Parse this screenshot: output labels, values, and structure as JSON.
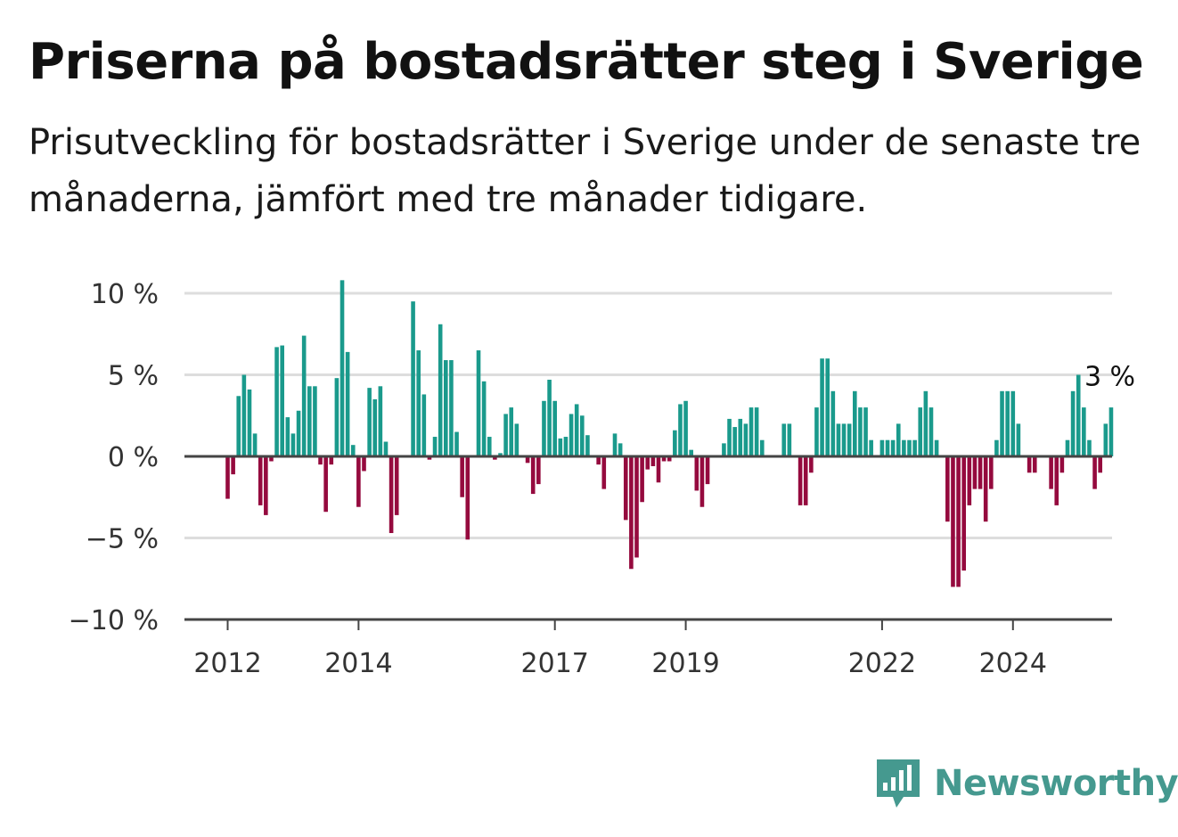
{
  "title": "Priserna på bostadsrätter steg i Sverige",
  "subtitle": "Prisutveckling för bostadsrätter i Sverige under de senaste tre månaderna, jämfört med tre månader tidigare.",
  "brand": {
    "name": "Newsworthy",
    "logo_icon": "bar-chart-speech-bubble-icon"
  },
  "colors": {
    "positive": "#1a9a8c",
    "negative": "#950a3e",
    "grid": "#dddddd",
    "axis": "#444444",
    "brand": "#45998f"
  },
  "chart_data": {
    "type": "bar",
    "title": "Priserna på bostadsrätter steg i Sverige",
    "xlabel": "",
    "ylabel": "",
    "ylim": [
      -10,
      11
    ],
    "yticks": [
      10,
      5,
      0,
      -5,
      -10
    ],
    "ytick_labels": [
      "10 %",
      "5 %",
      "0 %",
      "−5 %",
      "−10 %"
    ],
    "xticks": [
      {
        "label": "2012",
        "index": 0
      },
      {
        "label": "2014",
        "index": 24
      },
      {
        "label": "2017",
        "index": 60
      },
      {
        "label": "2019",
        "index": 84
      },
      {
        "label": "2022",
        "index": 120
      },
      {
        "label": "2024",
        "index": 144
      }
    ],
    "grid": true,
    "last_value_label": "3 %",
    "series": [
      {
        "values": [
          -2.6,
          -1.1,
          3.7,
          5.0,
          4.1,
          1.4,
          -3.0,
          -3.6,
          -0.3,
          6.7,
          6.8,
          2.4,
          1.4,
          2.8,
          7.4,
          4.3,
          4.3,
          -0.5,
          -3.4,
          -0.5,
          4.8,
          10.8,
          6.4,
          0.7,
          -3.1,
          -0.9,
          4.2,
          3.5,
          4.3,
          0.9,
          -4.7,
          -3.6,
          0,
          0,
          9.5,
          6.5,
          3.8,
          -0.2,
          1.2,
          8.1,
          5.9,
          5.9,
          1.5,
          -2.5,
          -5.1,
          0,
          6.5,
          4.6,
          1.2,
          -0.2,
          0.2,
          2.6,
          3.0,
          2.0,
          0,
          -0.4,
          -2.3,
          -1.7,
          3.4,
          4.7,
          3.4,
          1.1,
          1.2,
          2.6,
          3.2,
          2.5,
          1.3,
          0,
          -0.5,
          -2.0,
          0,
          1.4,
          0.8,
          -3.9,
          -6.9,
          -6.2,
          -2.8,
          -0.8,
          -0.6,
          -1.6,
          -0.3,
          -0.3,
          1.6,
          3.2,
          3.4,
          0.4,
          -2.1,
          -3.1,
          -1.7,
          0,
          0,
          0.8,
          2.3,
          1.8,
          2.3,
          2.0,
          3.0,
          3.0,
          1.0,
          0,
          0,
          0,
          2.0,
          2.0,
          0,
          -3.0,
          -3.0,
          -1.0,
          3.0,
          6.0,
          6.0,
          4.0,
          2.0,
          2.0,
          2.0,
          4.0,
          3.0,
          3.0,
          1.0,
          0,
          1.0,
          1.0,
          1.0,
          2.0,
          1.0,
          1.0,
          1.0,
          3.0,
          4.0,
          3.0,
          1.0,
          0,
          -4.0,
          -8.0,
          -8.0,
          -7.0,
          -3.0,
          -2.0,
          -2.0,
          -4.0,
          -2.0,
          1.0,
          4.0,
          4.0,
          4.0,
          2.0,
          0,
          -1.0,
          -1.0,
          0,
          0,
          -2.0,
          -3.0,
          -1.0,
          1.0,
          4.0,
          5.0,
          3.0,
          1.0,
          -2.0,
          -1.0,
          2.0,
          3.0
        ]
      }
    ]
  }
}
